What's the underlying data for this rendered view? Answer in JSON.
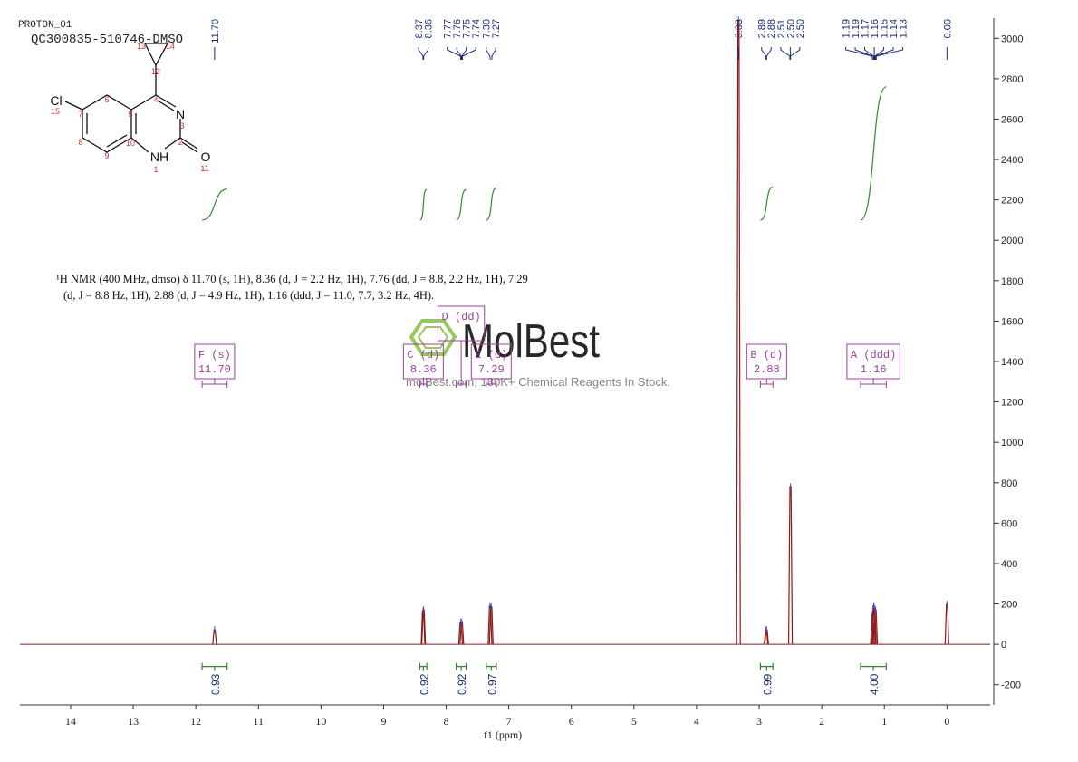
{
  "header": {
    "experiment": "PROTON_01",
    "sample": "QC300835-510746-DMSO"
  },
  "structure": {
    "atoms": {
      "cl": "Cl",
      "n3": "N",
      "nh": "NH",
      "o": "O"
    },
    "numbers": [
      "1",
      "2",
      "3",
      "4",
      "5",
      "6",
      "7",
      "8",
      "9",
      "10",
      "11",
      "12",
      "13",
      "14",
      "15"
    ]
  },
  "description": [
    "¹H NMR (400 MHz, dmso) δ 11.70 (s, 1H), 8.36 (d, J = 2.2 Hz, 1H), 7.76 (dd, J = 8.8, 2.2 Hz, 1H), 7.29",
    "(d, J = 8.8 Hz, 1H), 2.88 (d, J = 4.9 Hz, 1H), 1.16 (ddd, J = 11.0, 7.7, 3.2 Hz, 4H)."
  ],
  "watermark": {
    "brand": "MolBest",
    "tagline": "molBest.com, 180K+ Chemical Reagents In Stock."
  },
  "chart_data": {
    "type": "nmr",
    "x_label": "f1 (ppm)",
    "xlim": [
      14.81,
      -0.69
    ],
    "ylim": [
      -300,
      3100
    ],
    "xticks": [
      14,
      13,
      12,
      11,
      10,
      9,
      8,
      7,
      6,
      5,
      4,
      3,
      2,
      1,
      0
    ],
    "yticks": [
      -200,
      0,
      200,
      400,
      600,
      800,
      1000,
      1200,
      1400,
      1600,
      1800,
      2000,
      2200,
      2400,
      2600,
      2800,
      3000
    ],
    "color": "#8b1a1a",
    "label_color": "#1a2a7a",
    "integral_color": "#2e8b2e",
    "box_color": "#9c3f9c",
    "x": [
      11.7,
      8.37,
      8.36,
      7.77,
      7.75,
      7.3,
      7.28,
      3.33,
      2.89,
      2.88,
      2.5,
      1.19,
      1.17,
      1.16,
      1.14,
      0.0
    ],
    "values": [
      72,
      165,
      170,
      108,
      110,
      190,
      185,
      3090,
      70,
      72,
      780,
      150,
      190,
      180,
      170,
      198
    ],
    "peak_labels": [
      {
        "value": 11.7,
        "label": "11.70"
      },
      {
        "value": 8.37,
        "label": "8.37"
      },
      {
        "value": 8.36,
        "label": "8.36"
      },
      {
        "value": 7.77,
        "label": "7.77"
      },
      {
        "value": 7.76,
        "label": "7.76"
      },
      {
        "value": 7.75,
        "label": "7.75"
      },
      {
        "value": 7.74,
        "label": "7.74"
      },
      {
        "value": 7.3,
        "label": "7.30"
      },
      {
        "value": 7.27,
        "label": "7.27"
      },
      {
        "value": 3.33,
        "label": "3.33"
      },
      {
        "value": 2.89,
        "label": "2.89"
      },
      {
        "value": 2.88,
        "label": "2.88"
      },
      {
        "value": 2.51,
        "label": "2.51"
      },
      {
        "value": 2.5,
        "label": "2.50"
      },
      {
        "value": 2.5,
        "label": "2.50"
      },
      {
        "value": 1.19,
        "label": "1.19"
      },
      {
        "value": 1.19,
        "label": "1.19"
      },
      {
        "value": 1.17,
        "label": "1.17"
      },
      {
        "value": 1.16,
        "label": "1.16"
      },
      {
        "value": 1.15,
        "label": "1.15"
      },
      {
        "value": 1.14,
        "label": "1.14"
      },
      {
        "value": 1.13,
        "label": "1.13"
      },
      {
        "value": 0.0,
        "label": "0.00"
      }
    ],
    "integrals": [
      {
        "range": [
          11.9,
          11.5
        ],
        "value": 0.93,
        "label": "0.93"
      },
      {
        "range": [
          8.42,
          8.31
        ],
        "value": 0.92,
        "label": "0.92"
      },
      {
        "range": [
          7.84,
          7.68
        ],
        "value": 0.92,
        "label": "0.92"
      },
      {
        "range": [
          7.36,
          7.2
        ],
        "value": 0.97,
        "label": "0.97"
      },
      {
        "range": [
          2.98,
          2.78
        ],
        "value": 0.99,
        "label": "0.99"
      },
      {
        "range": [
          1.38,
          0.97
        ],
        "value": 4,
        "label": "4.00"
      }
    ],
    "multiplets": [
      {
        "name": "F (s)",
        "shift": "11.70",
        "range": [
          11.9,
          11.5
        ]
      },
      {
        "name": "C (d)",
        "shift": "8.36",
        "range": [
          8.42,
          8.31
        ]
      },
      {
        "name": "D (dd)",
        "range": [
          7.84,
          7.68
        ]
      },
      {
        "name": "E (d)",
        "shift": "7.29",
        "range": [
          7.36,
          7.2
        ]
      },
      {
        "name": "B (d)",
        "shift": "2.88",
        "range": [
          2.98,
          2.78
        ]
      },
      {
        "name": "A (ddd)",
        "shift": "1.16",
        "range": [
          1.38,
          0.97
        ]
      }
    ]
  }
}
